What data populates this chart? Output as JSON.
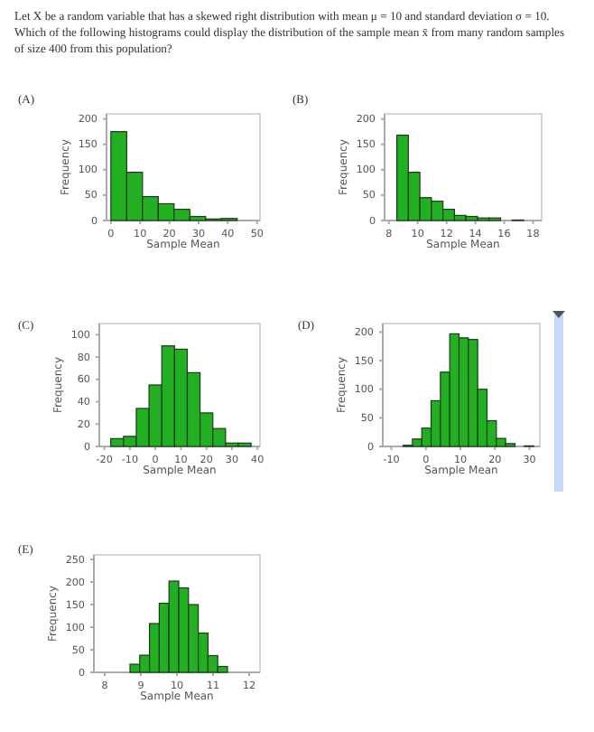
{
  "chart_data": [
    {
      "type": "other",
      "title": "Let X be a random variable that has a skewed right distribution with mean μ = 10 and standard deviation σ = 10. Which of the following histograms could display the distribution of the sample mean x̄ from many random samples of size 400 from this population?"
    },
    {
      "type": "histogram",
      "title": "(A)",
      "xlabel": "Sample Mean",
      "ylabel": "Frequency",
      "color": "#22b022",
      "bins": [
        0,
        5.4,
        10.8,
        16.2,
        21.6,
        27,
        32.4,
        37.8,
        43.2
      ],
      "values": [
        175,
        95,
        47,
        33,
        22,
        8,
        3,
        4
      ],
      "xlim": [
        -1.5,
        51
      ],
      "xticks": [
        0,
        10,
        20,
        30,
        40,
        50
      ],
      "ylim": [
        0,
        210
      ],
      "yticks": [
        0,
        50,
        100,
        150,
        200
      ]
    },
    {
      "type": "histogram",
      "title": "(B)",
      "xlabel": "Sample Mean",
      "ylabel": "Frequency",
      "color": "#22b022",
      "bins": [
        8.55,
        9.35,
        10.15,
        10.95,
        11.75,
        12.55,
        13.35,
        14.15,
        14.95,
        15.75,
        16.55,
        17.35
      ],
      "values": [
        168,
        95,
        45,
        38,
        22,
        10,
        8,
        5,
        5,
        0,
        1
      ],
      "xlim": [
        7.7,
        18.6
      ],
      "xticks": [
        8,
        10,
        12,
        14,
        16,
        18
      ],
      "ylim": [
        0,
        210
      ],
      "yticks": [
        0,
        50,
        100,
        150,
        200
      ]
    },
    {
      "type": "histogram",
      "title": "(C)",
      "xlabel": "Sample Mean",
      "ylabel": "Frequency",
      "color": "#22b022",
      "bins": [
        -17.5,
        -12.5,
        -7.5,
        -2.5,
        2.5,
        7.5,
        12.5,
        17.5,
        22.5,
        27.5,
        32.5,
        37.5
      ],
      "values": [
        7,
        9,
        34,
        55,
        90,
        87,
        66,
        30,
        16,
        3,
        3
      ],
      "xlim": [
        -22,
        41
      ],
      "xticks": [
        -20,
        -10,
        0,
        10,
        20,
        30,
        40
      ],
      "ylim": [
        0,
        110
      ],
      "yticks": [
        0,
        20,
        40,
        60,
        80,
        100
      ]
    },
    {
      "type": "histogram",
      "title": "(D)",
      "xlabel": "Sample Mean",
      "ylabel": "Frequency",
      "color": "#22b022",
      "bins": [
        -6.6,
        -3.9,
        -1.2,
        1.5,
        4.2,
        6.9,
        9.6,
        12.3,
        15,
        17.7,
        20.4,
        23.1,
        25.8,
        28.5,
        31.2
      ],
      "values": [
        2,
        13,
        32,
        80,
        130,
        197,
        190,
        187,
        100,
        45,
        14,
        5,
        0,
        1
      ],
      "xlim": [
        -12.5,
        33
      ],
      "xticks": [
        -10,
        0,
        10,
        20,
        30
      ],
      "ylim": [
        0,
        215
      ],
      "yticks": [
        0,
        50,
        100,
        150,
        200
      ]
    },
    {
      "type": "histogram",
      "title": "(E)",
      "xlabel": "Sample Mean",
      "ylabel": "Frequency",
      "color": "#22b022",
      "bins": [
        8.7,
        8.97,
        9.24,
        9.51,
        9.78,
        10.05,
        10.32,
        10.59,
        10.86,
        11.13,
        11.4
      ],
      "values": [
        18,
        38,
        108,
        153,
        202,
        187,
        150,
        87,
        37,
        13
      ],
      "xlim": [
        7.7,
        12.3
      ],
      "xticks": [
        8,
        9,
        10,
        11,
        12
      ],
      "ylim": [
        0,
        260
      ],
      "yticks": [
        0,
        50,
        100,
        150,
        200,
        250
      ]
    }
  ]
}
